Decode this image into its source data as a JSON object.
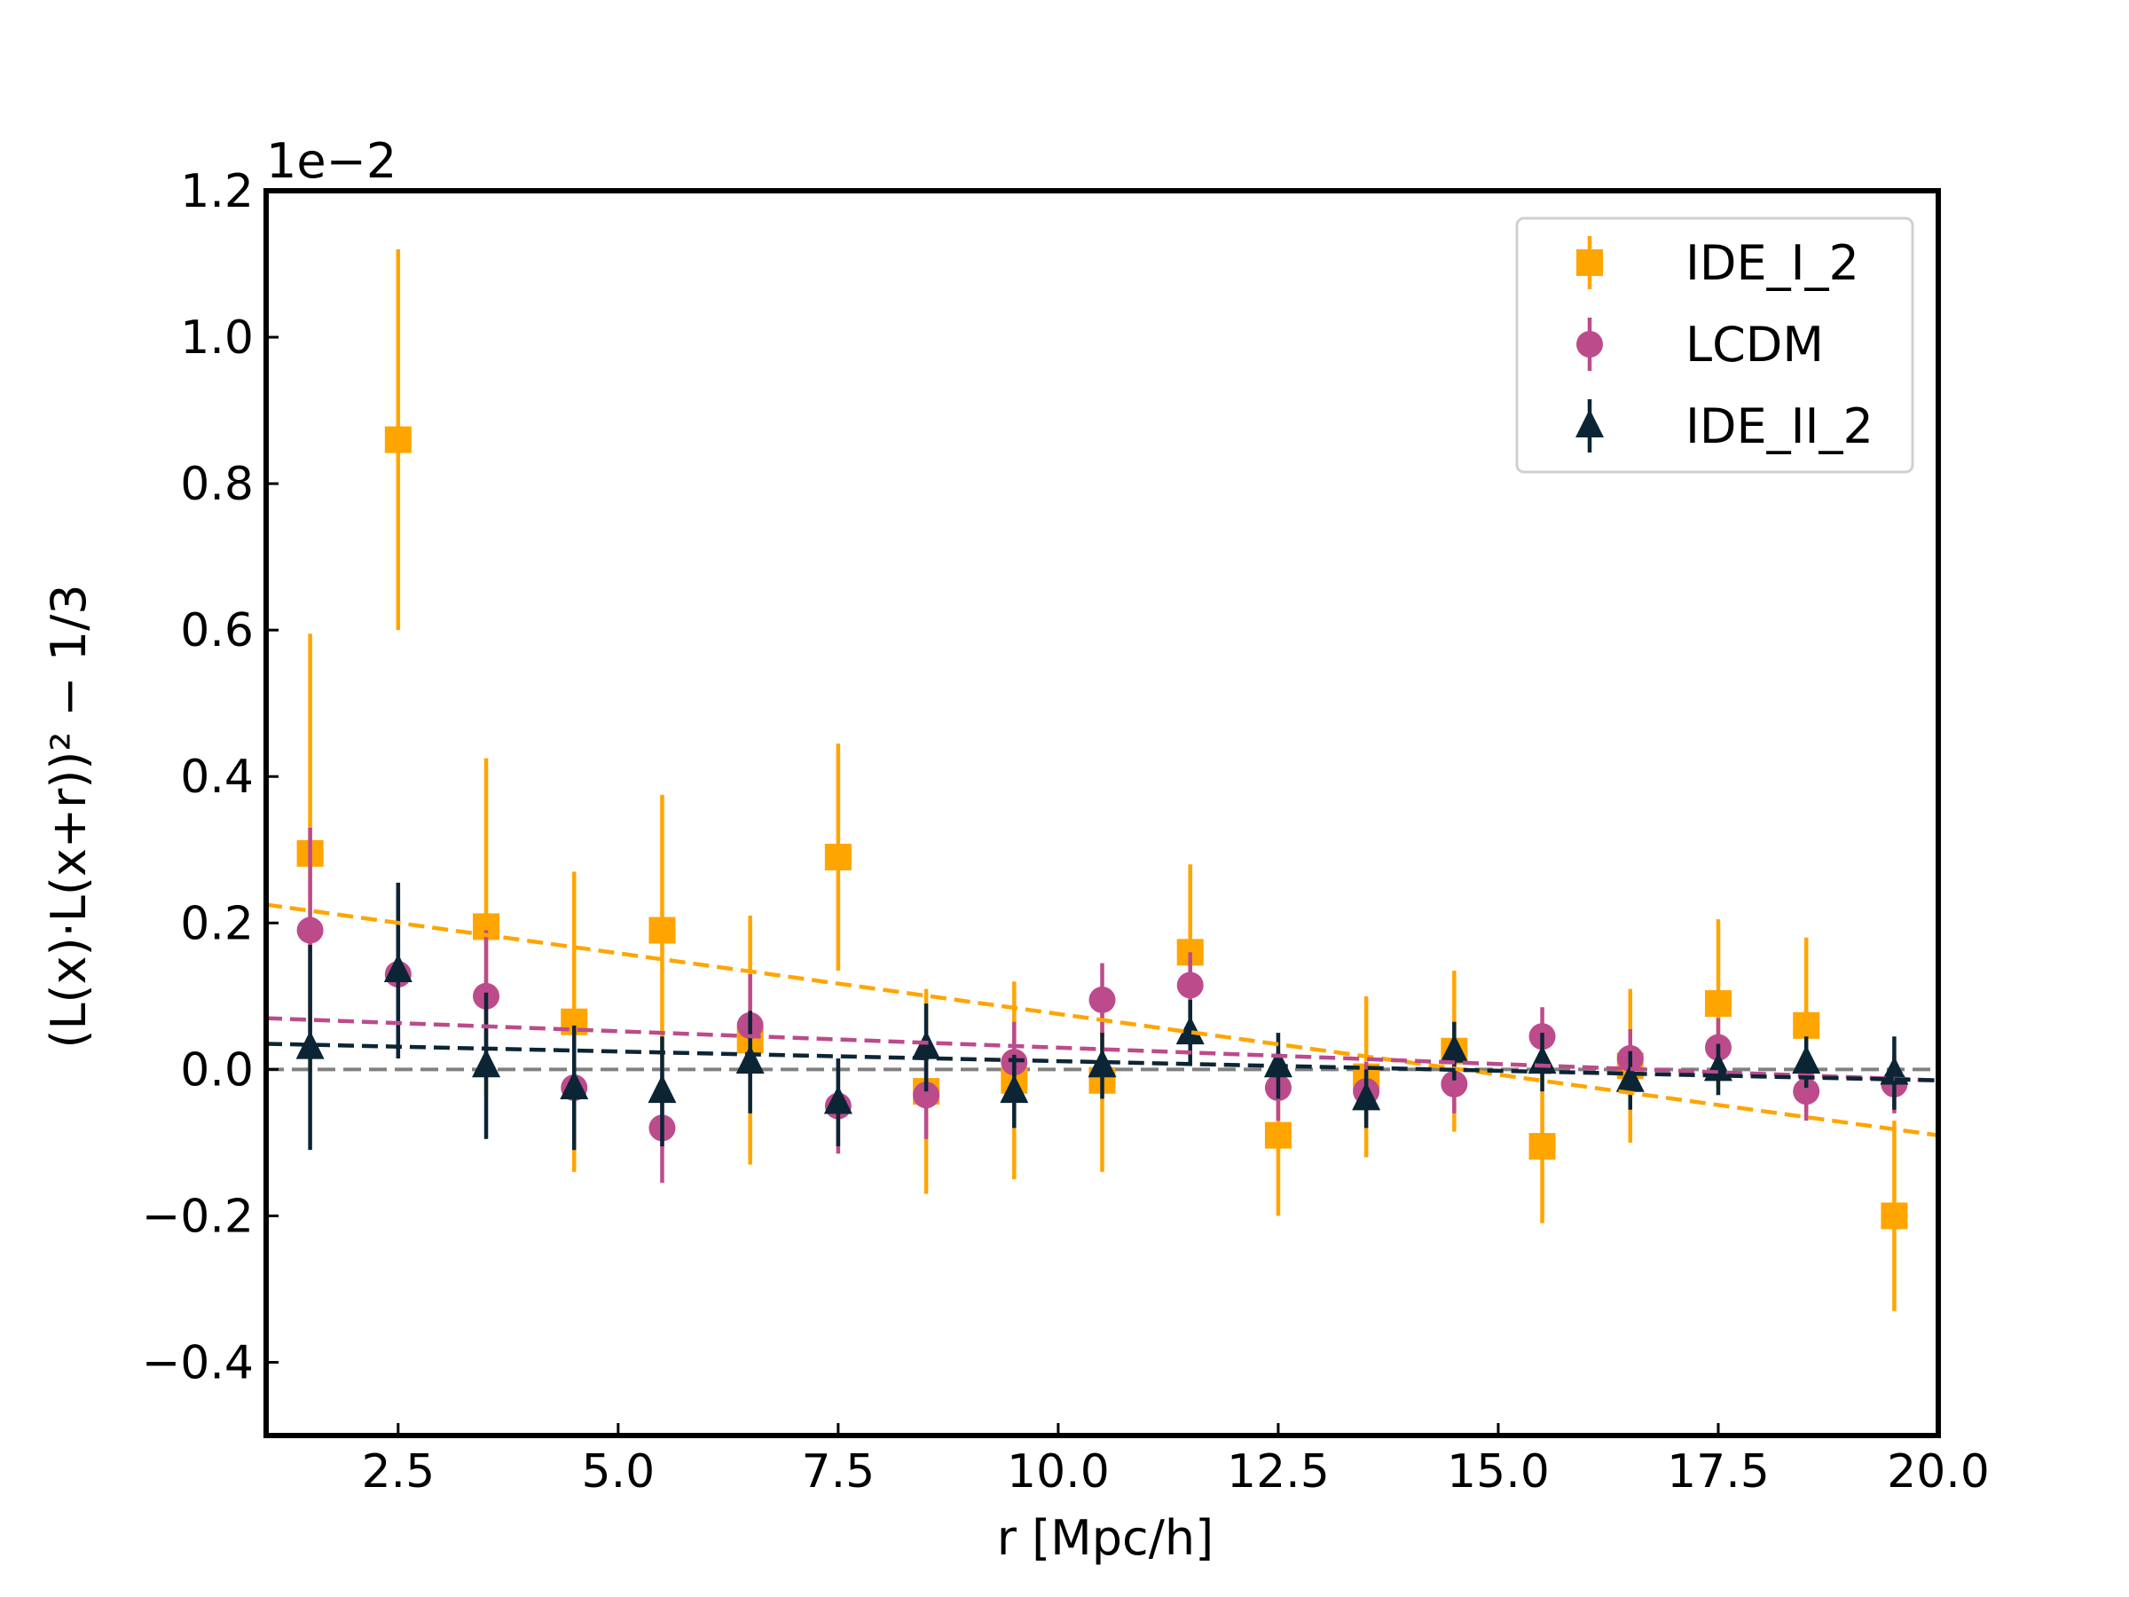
{
  "chart_data": {
    "type": "scatter",
    "title": "",
    "xlabel": "r [Mpc/h]",
    "ylabel": "(L(x)·L(x+r))² − 1/3",
    "y_offset_label": "1e−2",
    "xlim": [
      1.0,
      20.0
    ],
    "ylim": [
      -0.5,
      1.2
    ],
    "x_ticks": [
      2.5,
      5.0,
      7.5,
      10.0,
      12.5,
      15.0,
      17.5,
      20.0
    ],
    "x_tick_labels": [
      "2.5",
      "5.0",
      "7.5",
      "10.0",
      "12.5",
      "15.0",
      "17.5",
      "20.0"
    ],
    "y_ticks": [
      -0.4,
      -0.2,
      0.0,
      0.2,
      0.4,
      0.6,
      0.8,
      1.0,
      1.2
    ],
    "y_tick_labels": [
      "−0.4",
      "−0.2",
      "0.0",
      "0.2",
      "0.4",
      "0.6",
      "0.8",
      "1.0",
      "1.2"
    ],
    "reference_line": {
      "y": 0.0,
      "color": "#808080",
      "style": "dashed"
    },
    "legend_position": "top-right",
    "series": [
      {
        "name": "IDE_I_2",
        "marker": "square",
        "color": "#FFA500",
        "fit": {
          "x": [
            1.0,
            20.0
          ],
          "y": [
            0.225,
            -0.09
          ]
        },
        "points": [
          {
            "x": 1.5,
            "y": 0.295,
            "err": 0.3
          },
          {
            "x": 2.5,
            "y": 0.86,
            "err": 0.26
          },
          {
            "x": 3.5,
            "y": 0.195,
            "err": 0.23
          },
          {
            "x": 4.5,
            "y": 0.065,
            "err": 0.205
          },
          {
            "x": 5.5,
            "y": 0.19,
            "err": 0.185
          },
          {
            "x": 6.5,
            "y": 0.04,
            "err": 0.17
          },
          {
            "x": 7.5,
            "y": 0.29,
            "err": 0.155
          },
          {
            "x": 8.5,
            "y": -0.03,
            "err": 0.14
          },
          {
            "x": 9.5,
            "y": -0.015,
            "err": 0.135
          },
          {
            "x": 10.5,
            "y": -0.015,
            "err": 0.125
          },
          {
            "x": 11.5,
            "y": 0.16,
            "err": 0.12
          },
          {
            "x": 12.5,
            "y": -0.09,
            "err": 0.11
          },
          {
            "x": 13.5,
            "y": -0.01,
            "err": 0.11
          },
          {
            "x": 14.5,
            "y": 0.025,
            "err": 0.11
          },
          {
            "x": 15.5,
            "y": -0.105,
            "err": 0.105
          },
          {
            "x": 16.5,
            "y": 0.005,
            "err": 0.105
          },
          {
            "x": 17.5,
            "y": 0.09,
            "err": 0.115
          },
          {
            "x": 18.5,
            "y": 0.06,
            "err": 0.12
          },
          {
            "x": 19.5,
            "y": -0.2,
            "err": 0.13
          }
        ]
      },
      {
        "name": "LCDM",
        "marker": "circle",
        "color": "#BC4B8C",
        "fit": {
          "x": [
            1.0,
            20.0
          ],
          "y": [
            0.07,
            -0.015
          ]
        },
        "points": [
          {
            "x": 1.5,
            "y": 0.19,
            "err": 0.14
          },
          {
            "x": 2.5,
            "y": 0.13,
            "err": 0.115
          },
          {
            "x": 3.5,
            "y": 0.1,
            "err": 0.09
          },
          {
            "x": 4.5,
            "y": -0.025,
            "err": 0.085
          },
          {
            "x": 5.5,
            "y": -0.08,
            "err": 0.075
          },
          {
            "x": 6.5,
            "y": 0.06,
            "err": 0.07
          },
          {
            "x": 7.5,
            "y": -0.05,
            "err": 0.065
          },
          {
            "x": 8.5,
            "y": -0.035,
            "err": 0.06
          },
          {
            "x": 9.5,
            "y": 0.01,
            "err": 0.055
          },
          {
            "x": 10.5,
            "y": 0.095,
            "err": 0.05
          },
          {
            "x": 11.5,
            "y": 0.115,
            "err": 0.045
          },
          {
            "x": 12.5,
            "y": -0.025,
            "err": 0.045
          },
          {
            "x": 13.5,
            "y": -0.03,
            "err": 0.04
          },
          {
            "x": 14.5,
            "y": -0.02,
            "err": 0.04
          },
          {
            "x": 15.5,
            "y": 0.045,
            "err": 0.04
          },
          {
            "x": 16.5,
            "y": 0.015,
            "err": 0.04
          },
          {
            "x": 17.5,
            "y": 0.03,
            "err": 0.04
          },
          {
            "x": 18.5,
            "y": -0.03,
            "err": 0.04
          },
          {
            "x": 19.5,
            "y": -0.02,
            "err": 0.04
          }
        ]
      },
      {
        "name": "IDE_II_2",
        "marker": "triangle",
        "color": "#0B2535",
        "fit": {
          "x": [
            1.0,
            20.0
          ],
          "y": [
            0.035,
            -0.015
          ]
        },
        "points": [
          {
            "x": 1.5,
            "y": 0.03,
            "err": 0.14
          },
          {
            "x": 2.5,
            "y": 0.135,
            "err": 0.12
          },
          {
            "x": 3.5,
            "y": 0.005,
            "err": 0.1
          },
          {
            "x": 4.5,
            "y": -0.025,
            "err": 0.085
          },
          {
            "x": 5.5,
            "y": -0.03,
            "err": 0.075
          },
          {
            "x": 6.5,
            "y": 0.01,
            "err": 0.07
          },
          {
            "x": 7.5,
            "y": -0.045,
            "err": 0.06
          },
          {
            "x": 8.5,
            "y": 0.03,
            "err": 0.06
          },
          {
            "x": 9.5,
            "y": -0.03,
            "err": 0.05
          },
          {
            "x": 10.5,
            "y": 0.005,
            "err": 0.045
          },
          {
            "x": 11.5,
            "y": 0.05,
            "err": 0.045
          },
          {
            "x": 12.5,
            "y": 0.005,
            "err": 0.045
          },
          {
            "x": 13.5,
            "y": -0.04,
            "err": 0.04
          },
          {
            "x": 14.5,
            "y": 0.025,
            "err": 0.04
          },
          {
            "x": 15.5,
            "y": 0.01,
            "err": 0.04
          },
          {
            "x": 16.5,
            "y": -0.015,
            "err": 0.04
          },
          {
            "x": 17.5,
            "y": 0.0,
            "err": 0.035
          },
          {
            "x": 18.5,
            "y": 0.01,
            "err": 0.035
          },
          {
            "x": 19.5,
            "y": -0.005,
            "err": 0.05
          }
        ]
      }
    ]
  }
}
